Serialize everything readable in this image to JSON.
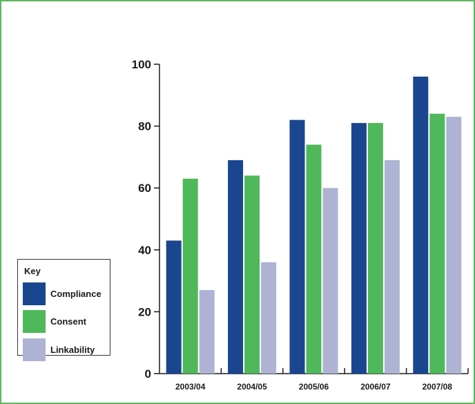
{
  "chart_data": {
    "type": "bar",
    "categories": [
      "2003/04",
      "2004/05",
      "2005/06",
      "2006/07",
      "2007/08"
    ],
    "series": [
      {
        "name": "Compliance",
        "color": "#1a4690",
        "values": [
          43,
          69,
          82,
          81,
          96
        ]
      },
      {
        "name": "Consent",
        "color": "#4fb85a",
        "values": [
          63,
          64,
          74,
          81,
          84
        ]
      },
      {
        "name": "Linkability",
        "color": "#aeb3d3",
        "values": [
          27,
          36,
          60,
          69,
          83
        ]
      }
    ],
    "ylim": [
      0,
      100
    ],
    "yticks": [
      0,
      20,
      40,
      60,
      80,
      100
    ],
    "ytick_labels": [
      "0",
      "20",
      "40",
      "60",
      "80",
      "100"
    ],
    "title": "",
    "xlabel": "",
    "ylabel": "",
    "grid": false,
    "legend": {
      "title": "Key",
      "placement": "left"
    }
  },
  "frame_color": "#5cb85c"
}
